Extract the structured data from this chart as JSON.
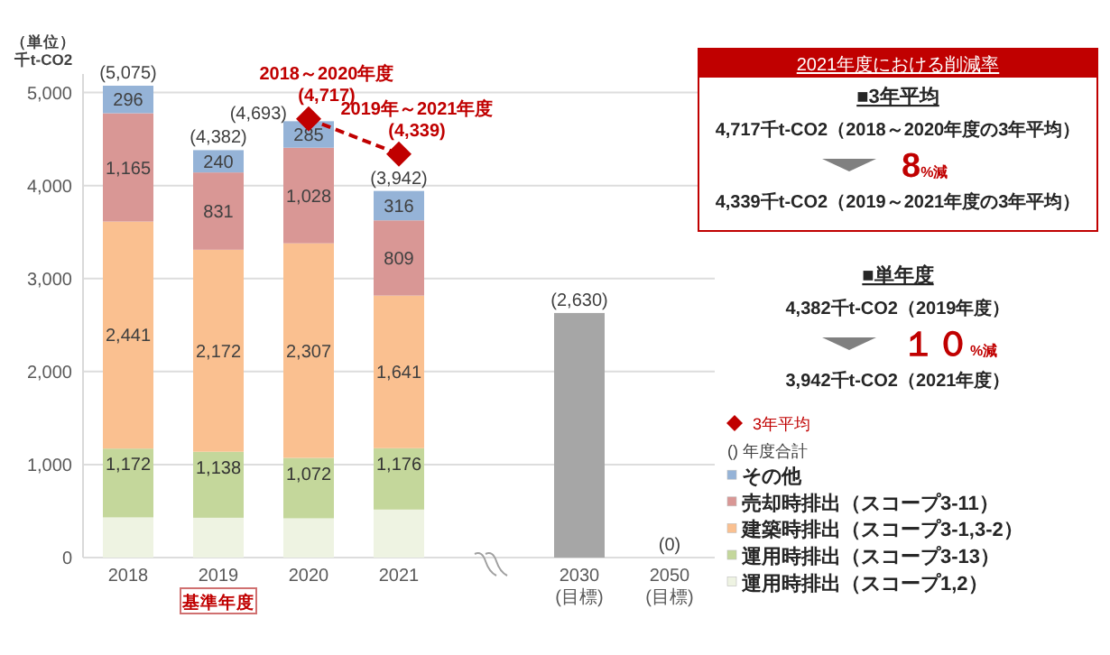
{
  "chart_data": [
    {
      "type": "bar",
      "stacked": true,
      "categories": [
        "2018",
        "2019\n基準年度",
        "2020",
        "2021",
        null,
        "2030\n(目標)",
        "2050\n(目標)"
      ],
      "ylabel": "（単位）千t-CO2",
      "ylim": [
        0,
        5200
      ],
      "yticks": [
        0,
        {
          "value": 1000,
          "label": "1,000"
        },
        {
          "value": 2000,
          "label": "2,000"
        },
        {
          "value": 3000,
          "label": "3,000"
        },
        {
          "value": 4000,
          "label": "4,000"
        },
        {
          "value": 5000,
          "label": "5,000"
        }
      ],
      "grid": "y",
      "legend": "right",
      "totals": [
        "(5,075)",
        "(4,382)",
        "(4,693)",
        "(3,942)",
        null,
        "(2,630)",
        "(0)"
      ],
      "series": [
        {
          "name": "運用時排出（スコープ1,2）",
          "color": "#eef3e2",
          "values": [
            432,
            428,
            422,
            516,
            null,
            null,
            null
          ]
        },
        {
          "name": "運用時排出（スコープ3-13）",
          "color": "#c4d79b",
          "values": [
            740,
            710,
            650,
            660,
            null,
            null,
            null
          ]
        },
        {
          "name": "建築時排出（スコープ3-1,3-2）",
          "color": "#fac090",
          "values": [
            2441,
            2172,
            2307,
            1641,
            null,
            null,
            null
          ],
          "value_labels": [
            "2,441",
            "2,172",
            "2,307",
            "1,641",
            null,
            null,
            null
          ]
        },
        {
          "name": "売却時排出（スコープ3-11）",
          "color": "#d99795",
          "values": [
            1165,
            831,
            1028,
            809,
            null,
            null,
            null
          ],
          "value_labels": [
            "1,165",
            "831",
            "1,028",
            "809",
            null,
            null,
            null
          ]
        },
        {
          "name": "その他",
          "color": "#95b3d7",
          "values": [
            296,
            240,
            285,
            316,
            null,
            null,
            null
          ],
          "value_labels": [
            "296",
            "240",
            "285",
            "316",
            null,
            null,
            null
          ]
        },
        {
          "color": "#a6a6a6",
          "values": [
            null,
            null,
            null,
            null,
            null,
            2630,
            0
          ]
        },
        {
          "type": "line",
          "name": "3年平均",
          "color": "#c00000",
          "marker": "diamond",
          "line_style": "dashed",
          "values": [
            null,
            null,
            4717,
            4339,
            null,
            null,
            null
          ]
        }
      ],
      "annotations": [
        {
          "text": "2018～2020年度\n(4,717)",
          "x": "2020",
          "y": 4717
        },
        {
          "text": "2019年～2021年度\n(4,339)",
          "x": "2021",
          "y": 4339
        },
        {
          "text": "1,172",
          "x": "2018",
          "y": 1172
        },
        {
          "text": "1,138",
          "x": "2019\n基準年度",
          "y": 1138
        },
        {
          "text": "1,072",
          "x": "2020",
          "y": 1072
        },
        {
          "text": "1,176",
          "x": "2021",
          "y": 1176
        },
        "() 年度合計"
      ]
    },
    {
      "type": "other",
      "title": "2021年度における削減率",
      "annotations": [
        "■3年平均",
        "4,717千t-CO2（2018～2020年度の3年平均）",
        "8%減",
        "4,339千t-CO2（2019～2021年度の3年平均）"
      ]
    },
    {
      "type": "other",
      "annotations": [
        "■単年度",
        "4,382千t-CO2（2019年度）",
        "１０%減",
        "3,942千t-CO2（2021年度）"
      ]
    }
  ]
}
